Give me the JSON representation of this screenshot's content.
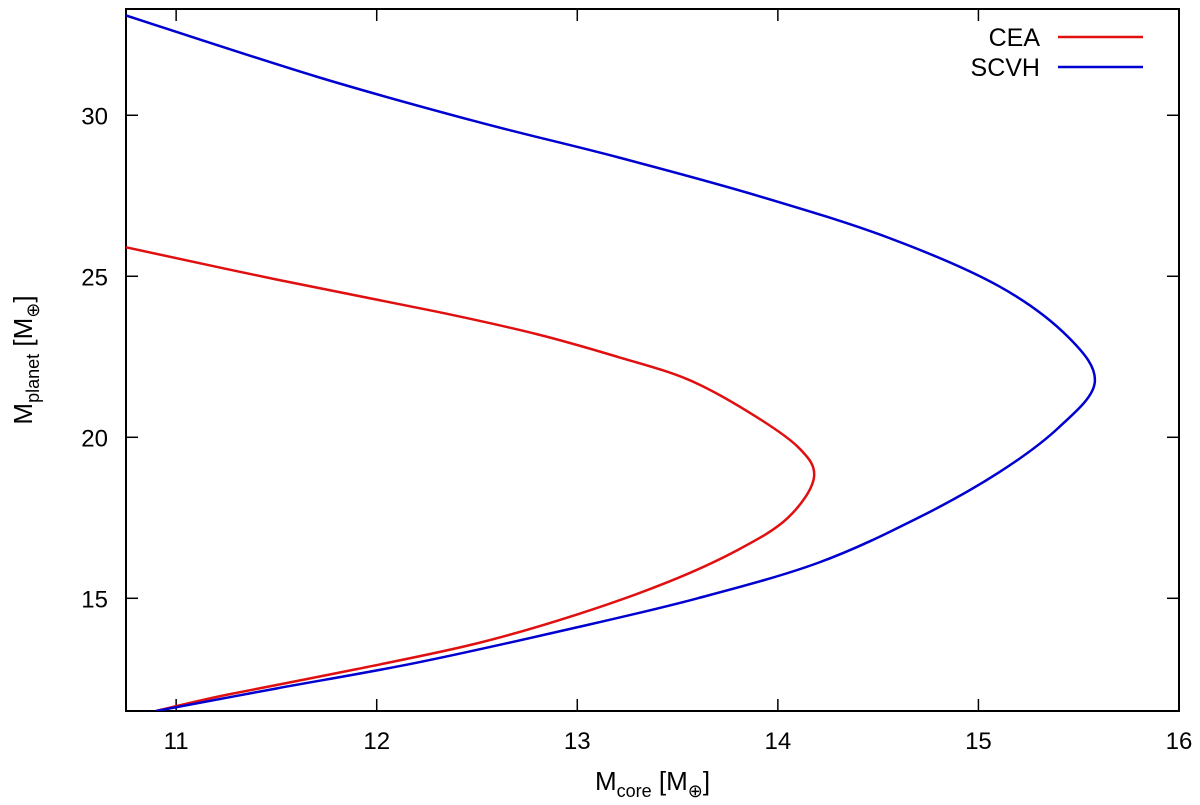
{
  "chart_data": {
    "type": "line",
    "title": "",
    "xlabel": {
      "main": "M",
      "sub": "core",
      "unit": "[M",
      "symbol": "⊕",
      "close": "]"
    },
    "ylabel": {
      "main": "M",
      "sub": "planet",
      "unit": "[M",
      "symbol": "⊕",
      "close": "]"
    },
    "xlim": [
      10.75,
      16
    ],
    "ylim": [
      11.5,
      33.3
    ],
    "xticks": [
      11,
      12,
      13,
      14,
      15,
      16
    ],
    "yticks": [
      15,
      20,
      25,
      30
    ],
    "x_tick_labels": [
      "11",
      "12",
      "13",
      "14",
      "15",
      "16"
    ],
    "y_tick_labels": [
      "15",
      "20",
      "25",
      "30"
    ],
    "grid": false,
    "legend_position": "top-right",
    "series": [
      {
        "name": "CEA",
        "color": "#e01010",
        "points": [
          [
            10.9,
            11.5
          ],
          [
            11.25,
            12.0
          ],
          [
            11.9,
            12.8
          ],
          [
            12.5,
            13.6
          ],
          [
            13.0,
            14.5
          ],
          [
            13.45,
            15.5
          ],
          [
            13.8,
            16.5
          ],
          [
            14.05,
            17.5
          ],
          [
            14.18,
            18.75
          ],
          [
            14.1,
            19.7
          ],
          [
            13.85,
            20.8
          ],
          [
            13.55,
            21.8
          ],
          [
            13.2,
            22.5
          ],
          [
            12.8,
            23.2
          ],
          [
            12.3,
            23.9
          ],
          [
            11.5,
            24.9
          ],
          [
            10.75,
            25.9
          ]
        ]
      },
      {
        "name": "SCVH",
        "color": "#0000d0",
        "points": [
          [
            10.9,
            11.5
          ],
          [
            11.5,
            12.2
          ],
          [
            12.2,
            13.0
          ],
          [
            13.0,
            14.1
          ],
          [
            13.6,
            15.0
          ],
          [
            14.2,
            16.1
          ],
          [
            14.7,
            17.5
          ],
          [
            15.1,
            18.9
          ],
          [
            15.4,
            20.3
          ],
          [
            15.58,
            21.7
          ],
          [
            15.45,
            23.1
          ],
          [
            15.1,
            24.7
          ],
          [
            14.55,
            26.2
          ],
          [
            13.9,
            27.5
          ],
          [
            13.2,
            28.7
          ],
          [
            12.5,
            29.8
          ],
          [
            11.7,
            31.2
          ],
          [
            10.75,
            33.1
          ]
        ]
      }
    ]
  }
}
